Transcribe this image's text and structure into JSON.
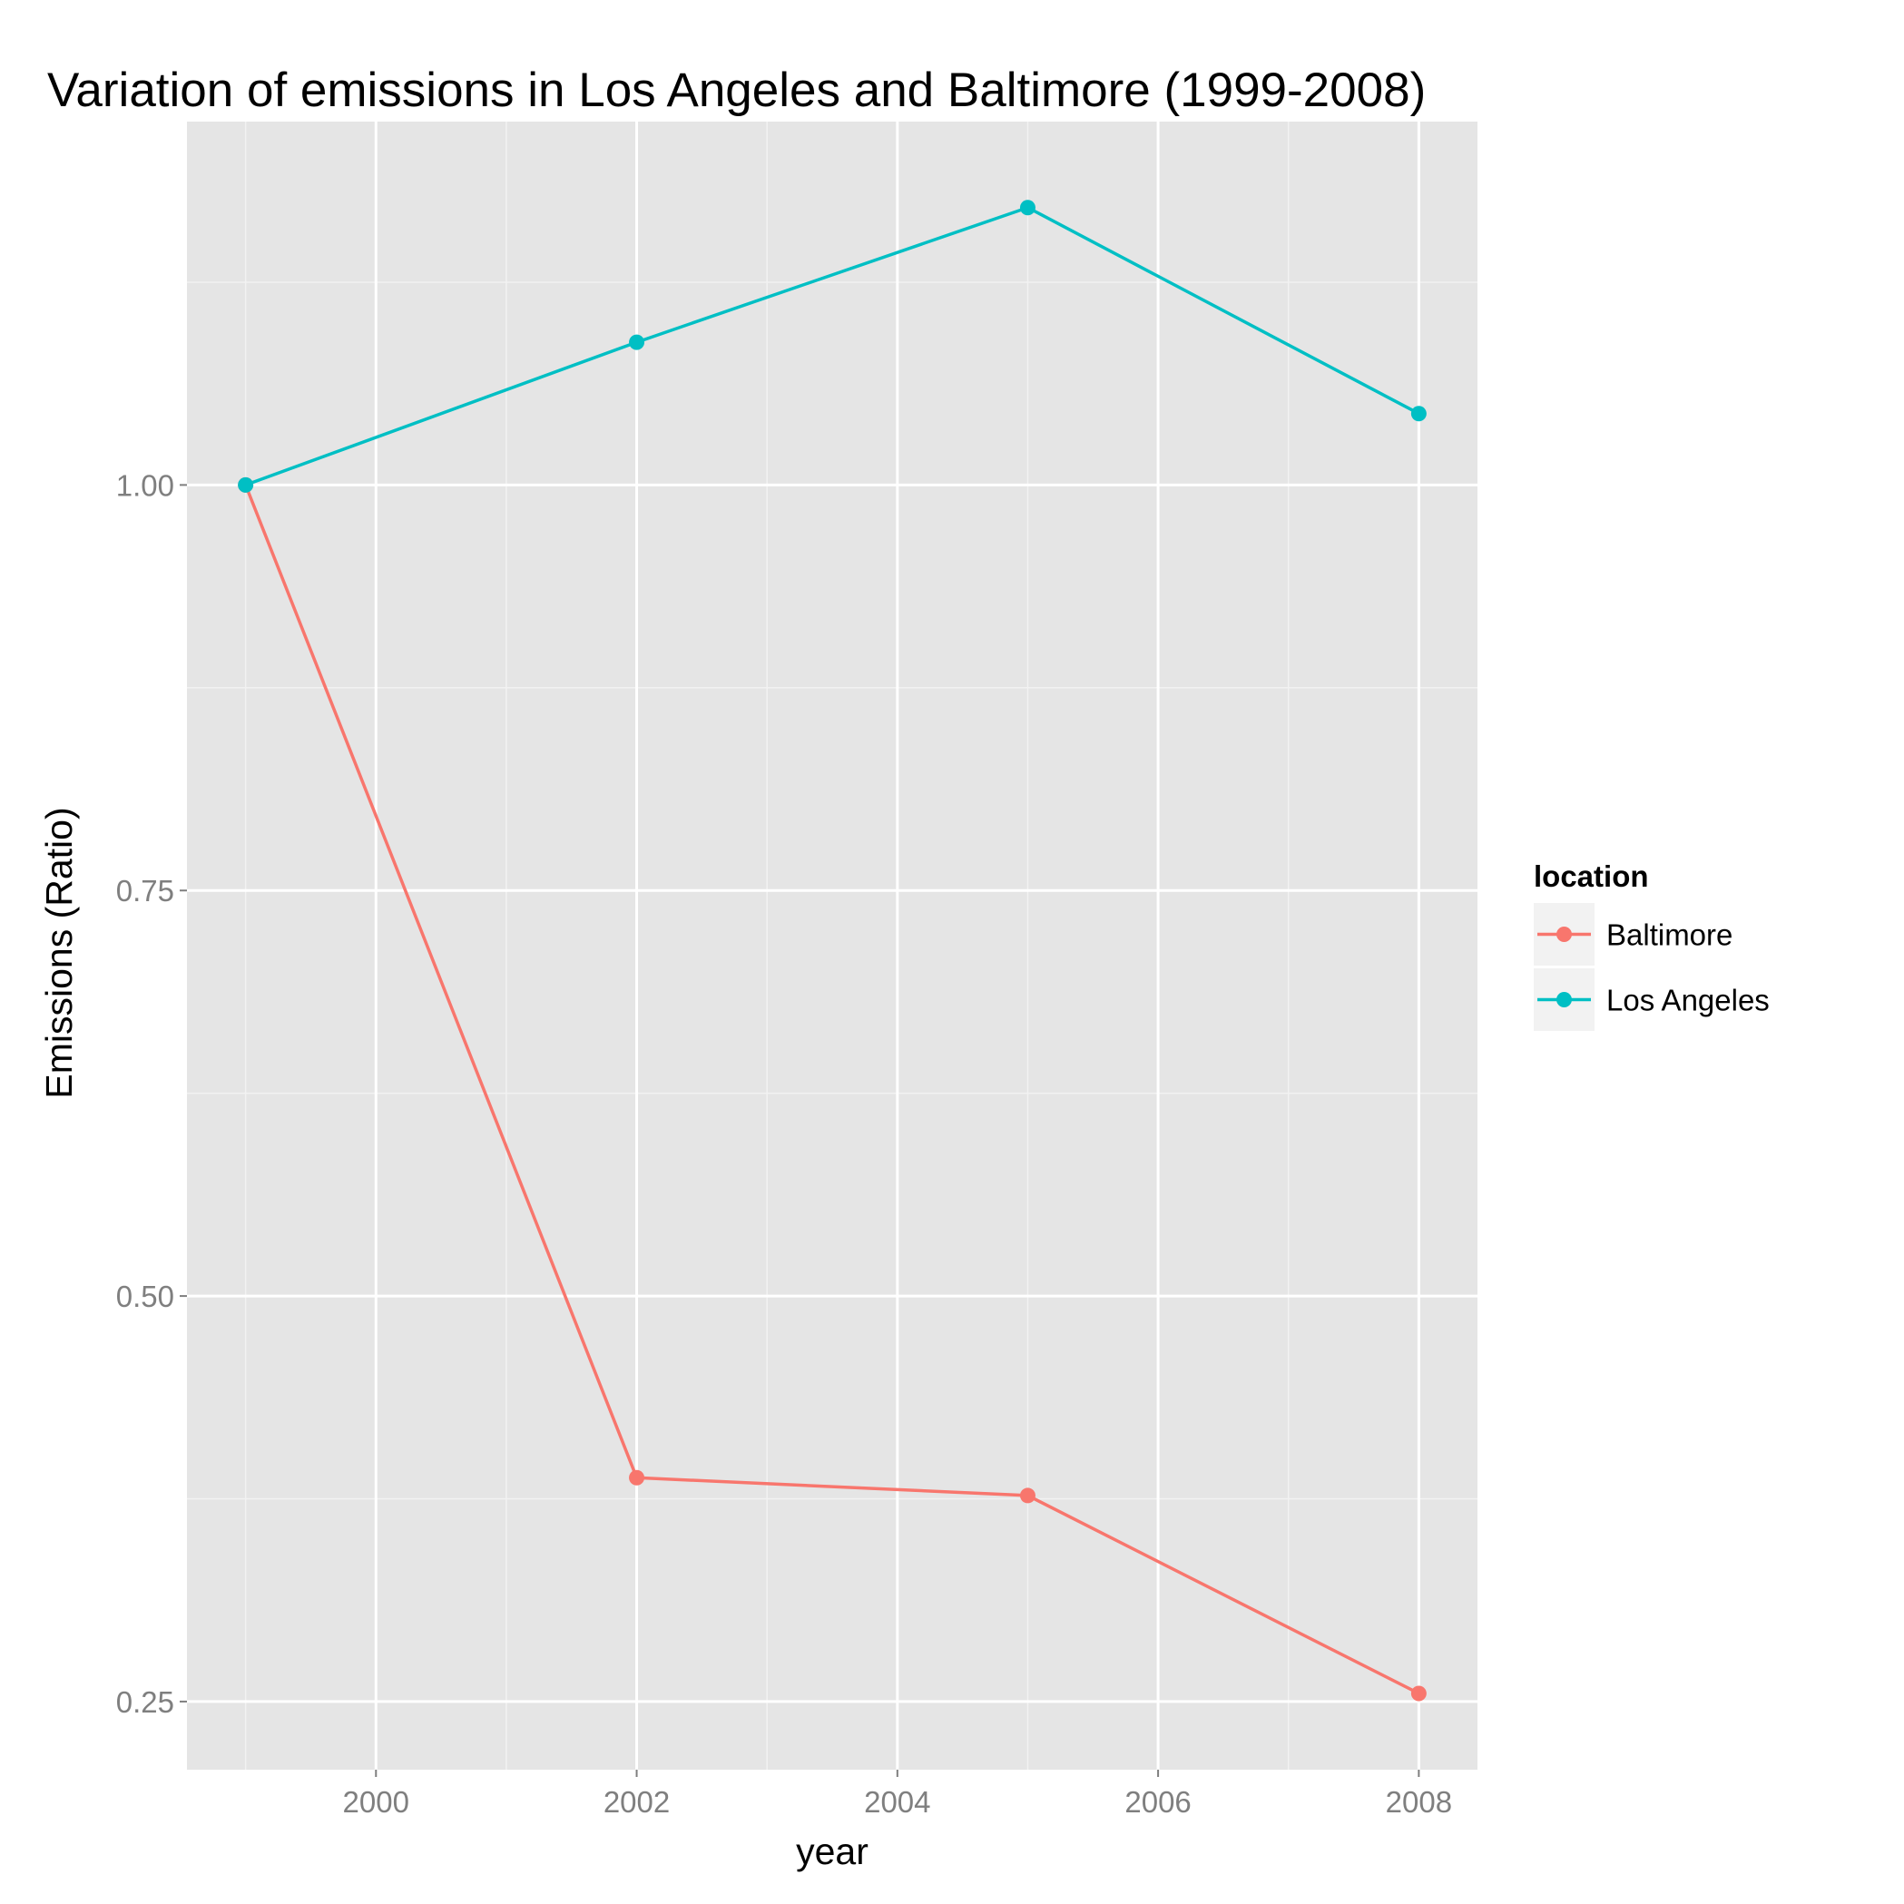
{
  "chart_data": {
    "type": "line",
    "title": "Variation of emissions in Los Angeles and Baltimore (1999-2008)",
    "xlabel": "year",
    "ylabel": "Emissions (Ratio)",
    "x": [
      1999,
      2002,
      2005,
      2008
    ],
    "xlim": [
      1998.55,
      2008.45
    ],
    "ylim": [
      0.208,
      1.224
    ],
    "x_ticks": [
      2000,
      2002,
      2004,
      2006,
      2008
    ],
    "x_tick_labels": [
      "2000",
      "2002",
      "2004",
      "2006",
      "2008"
    ],
    "y_ticks": [
      0.25,
      0.5,
      0.75,
      1.0
    ],
    "y_tick_labels": [
      "0.25",
      "0.50",
      "0.75",
      "1.00"
    ],
    "grid": true,
    "legend": {
      "title": "location",
      "position": "right"
    },
    "series": [
      {
        "name": "Baltimore",
        "color": "#F8766D",
        "values": [
          1.0,
          0.388,
          0.377,
          0.255
        ]
      },
      {
        "name": "Los Angeles",
        "color": "#00BFC4",
        "values": [
          1.0,
          1.088,
          1.171,
          1.044
        ]
      }
    ],
    "panel_background": "#E5E5E5",
    "grid_color": "#FFFFFF"
  }
}
